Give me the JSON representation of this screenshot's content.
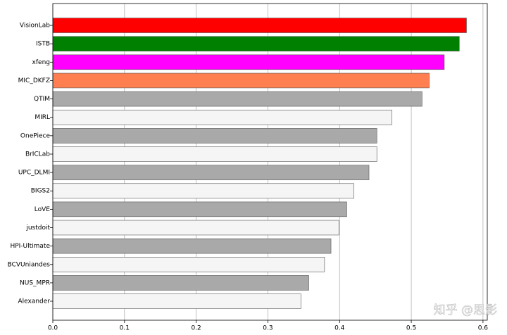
{
  "chart_data": {
    "type": "barh",
    "categories": [
      "VisionLab",
      "ISTB",
      "xfeng",
      "MIC_DKFZ",
      "QTIM",
      "MIRL",
      "OnePiece",
      "BrICLab",
      "UPC_DLMI",
      "BIGS2",
      "LoVE",
      "justdoit",
      "HPI-Ultimate",
      "BCVUniandes",
      "NUS_MPR",
      "Alexander"
    ],
    "values": [
      0.577,
      0.567,
      0.546,
      0.525,
      0.515,
      0.473,
      0.452,
      0.452,
      0.441,
      0.42,
      0.41,
      0.399,
      0.388,
      0.379,
      0.357,
      0.346
    ],
    "colors": [
      "#ff0000",
      "#008000",
      "#ff00ff",
      "#ff7f50",
      "#a9a9a9",
      "#f5f5f5",
      "#a9a9a9",
      "#f5f5f5",
      "#a9a9a9",
      "#f5f5f5",
      "#a9a9a9",
      "#f5f5f5",
      "#a9a9a9",
      "#f5f5f5",
      "#a9a9a9",
      "#f5f5f5"
    ],
    "xlim": [
      0,
      0.606
    ],
    "xticks": [
      {
        "value": 0,
        "label": "0.0"
      },
      0.1,
      0.2,
      0.3,
      0.4,
      0.5,
      0.6
    ],
    "grid": true,
    "watermark": "知乎 @思影"
  }
}
